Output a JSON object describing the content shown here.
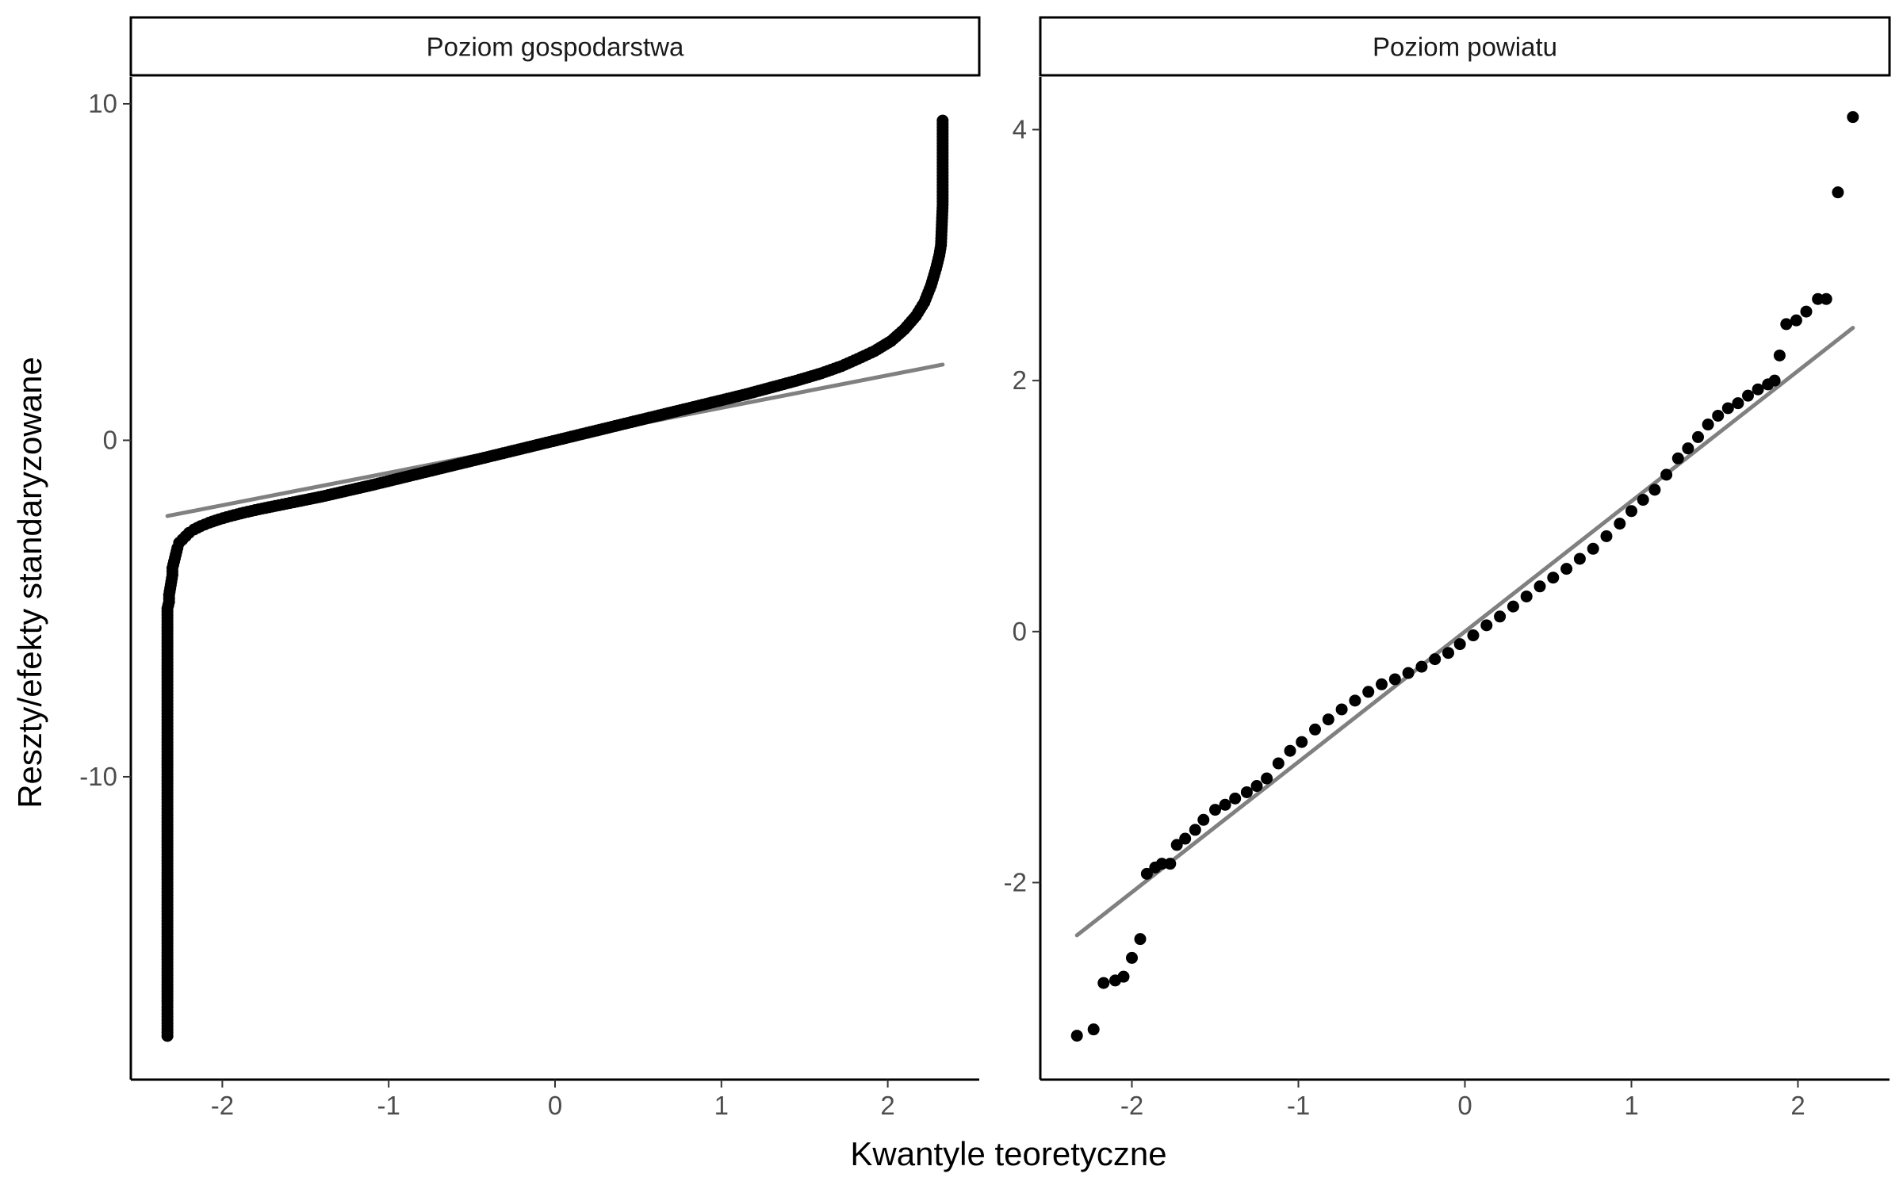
{
  "figure": {
    "xlabel": "Kwantyle teoretyczne",
    "ylabel": "Reszty/efekty standaryzowane"
  },
  "colors": {
    "points": "#000000",
    "reference_line": "#808080",
    "axis": "#000000",
    "tick_label": "#4d4d4d"
  },
  "chart_data": [
    {
      "type": "scatter",
      "title": "Poziom gospodarstwa",
      "xlim": [
        -2.55,
        2.55
      ],
      "ylim": [
        -19.0,
        10.8
      ],
      "xticks": [
        -2,
        -1,
        0,
        1,
        2
      ],
      "xtick_labels": [
        "-2",
        "-1",
        "0",
        "1",
        "2"
      ],
      "yticks": [
        -10,
        0,
        10
      ],
      "ytick_labels": [
        "-10",
        "0",
        "10"
      ],
      "reference_line": {
        "x": [
          -2.33,
          2.33
        ],
        "y": [
          -2.25,
          2.25
        ]
      },
      "series": [
        {
          "points": [
            [
              -2.33,
              -17.7
            ],
            [
              -2.33,
              -10.2
            ],
            [
              -2.33,
              -5.0
            ],
            [
              -2.32,
              -4.8
            ],
            [
              -2.32,
              -4.6
            ],
            [
              -2.31,
              -4.3
            ],
            [
              -2.3,
              -4.0
            ],
            [
              -2.3,
              -3.8
            ],
            [
              -2.29,
              -3.6
            ],
            [
              -2.28,
              -3.4
            ],
            [
              -2.27,
              -3.2
            ],
            [
              -2.26,
              -3.05
            ],
            [
              -2.24,
              -2.95
            ],
            [
              -2.22,
              -2.85
            ],
            [
              -2.2,
              -2.75
            ],
            [
              -2.17,
              -2.65
            ],
            [
              -2.13,
              -2.55
            ],
            [
              -2.08,
              -2.45
            ],
            [
              -2.02,
              -2.35
            ],
            [
              -1.95,
              -2.25
            ],
            [
              -1.87,
              -2.15
            ],
            [
              -1.78,
              -2.05
            ],
            [
              -1.68,
              -1.95
            ],
            [
              -1.55,
              -1.82
            ],
            [
              -1.4,
              -1.67
            ],
            [
              -1.25,
              -1.5
            ],
            [
              -1.1,
              -1.33
            ],
            [
              -0.95,
              -1.15
            ],
            [
              -0.8,
              -0.97
            ],
            [
              -0.65,
              -0.79
            ],
            [
              -0.5,
              -0.61
            ],
            [
              -0.35,
              -0.43
            ],
            [
              -0.2,
              -0.25
            ],
            [
              -0.05,
              -0.07
            ],
            [
              0.1,
              0.11
            ],
            [
              0.25,
              0.29
            ],
            [
              0.4,
              0.47
            ],
            [
              0.55,
              0.65
            ],
            [
              0.7,
              0.83
            ],
            [
              0.85,
              1.01
            ],
            [
              1.0,
              1.19
            ],
            [
              1.15,
              1.37
            ],
            [
              1.3,
              1.57
            ],
            [
              1.45,
              1.77
            ],
            [
              1.6,
              1.99
            ],
            [
              1.72,
              2.2
            ],
            [
              1.82,
              2.42
            ],
            [
              1.92,
              2.65
            ],
            [
              2.02,
              2.95
            ],
            [
              2.1,
              3.3
            ],
            [
              2.17,
              3.7
            ],
            [
              2.22,
              4.1
            ],
            [
              2.26,
              4.6
            ],
            [
              2.29,
              5.1
            ],
            [
              2.31,
              5.5
            ],
            [
              2.32,
              5.8
            ],
            [
              2.33,
              7.0
            ],
            [
              2.33,
              9.5
            ]
          ]
        }
      ]
    },
    {
      "type": "scatter",
      "title": "Poziom powiatu",
      "xlim": [
        -2.55,
        2.55
      ],
      "ylim": [
        -3.57,
        4.42
      ],
      "xticks": [
        -2,
        -1,
        0,
        1,
        2
      ],
      "xtick_labels": [
        "-2",
        "-1",
        "0",
        "1",
        "2"
      ],
      "yticks": [
        -2,
        0,
        2,
        4
      ],
      "ytick_labels": [
        "-2",
        "0",
        "2",
        "4"
      ],
      "reference_line": {
        "x": [
          -2.33,
          2.33
        ],
        "y": [
          -2.42,
          2.42
        ]
      },
      "series": [
        {
          "points": [
            [
              -2.33,
              -3.22
            ],
            [
              -2.23,
              -3.17
            ],
            [
              -2.17,
              -2.8
            ],
            [
              -2.1,
              -2.78
            ],
            [
              -2.05,
              -2.75
            ],
            [
              -2.0,
              -2.6
            ],
            [
              -1.95,
              -2.45
            ],
            [
              -1.91,
              -1.93
            ],
            [
              -1.86,
              -1.88
            ],
            [
              -1.82,
              -1.85
            ],
            [
              -1.77,
              -1.85
            ],
            [
              -1.73,
              -1.7
            ],
            [
              -1.68,
              -1.65
            ],
            [
              -1.62,
              -1.58
            ],
            [
              -1.57,
              -1.5
            ],
            [
              -1.5,
              -1.42
            ],
            [
              -1.44,
              -1.38
            ],
            [
              -1.38,
              -1.33
            ],
            [
              -1.31,
              -1.28
            ],
            [
              -1.25,
              -1.23
            ],
            [
              -1.19,
              -1.17
            ],
            [
              -1.12,
              -1.05
            ],
            [
              -1.05,
              -0.95
            ],
            [
              -0.98,
              -0.88
            ],
            [
              -0.9,
              -0.78
            ],
            [
              -0.82,
              -0.7
            ],
            [
              -0.74,
              -0.62
            ],
            [
              -0.66,
              -0.55
            ],
            [
              -0.58,
              -0.48
            ],
            [
              -0.5,
              -0.42
            ],
            [
              -0.42,
              -0.38
            ],
            [
              -0.34,
              -0.33
            ],
            [
              -0.26,
              -0.28
            ],
            [
              -0.18,
              -0.22
            ],
            [
              -0.1,
              -0.17
            ],
            [
              -0.03,
              -0.1
            ],
            [
              0.05,
              -0.03
            ],
            [
              0.13,
              0.05
            ],
            [
              0.21,
              0.12
            ],
            [
              0.29,
              0.2
            ],
            [
              0.37,
              0.28
            ],
            [
              0.45,
              0.36
            ],
            [
              0.53,
              0.43
            ],
            [
              0.61,
              0.5
            ],
            [
              0.69,
              0.58
            ],
            [
              0.77,
              0.66
            ],
            [
              0.85,
              0.76
            ],
            [
              0.93,
              0.86
            ],
            [
              1.0,
              0.96
            ],
            [
              1.07,
              1.05
            ],
            [
              1.14,
              1.13
            ],
            [
              1.21,
              1.25
            ],
            [
              1.28,
              1.38
            ],
            [
              1.34,
              1.46
            ],
            [
              1.4,
              1.55
            ],
            [
              1.46,
              1.65
            ],
            [
              1.52,
              1.72
            ],
            [
              1.58,
              1.78
            ],
            [
              1.64,
              1.82
            ],
            [
              1.7,
              1.88
            ],
            [
              1.76,
              1.93
            ],
            [
              1.82,
              1.97
            ],
            [
              1.86,
              2.0
            ],
            [
              1.89,
              2.2
            ],
            [
              1.93,
              2.45
            ],
            [
              1.99,
              2.48
            ],
            [
              2.05,
              2.55
            ],
            [
              2.12,
              2.65
            ],
            [
              2.17,
              2.65
            ],
            [
              2.24,
              3.5
            ],
            [
              2.33,
              4.1
            ]
          ]
        }
      ]
    }
  ]
}
